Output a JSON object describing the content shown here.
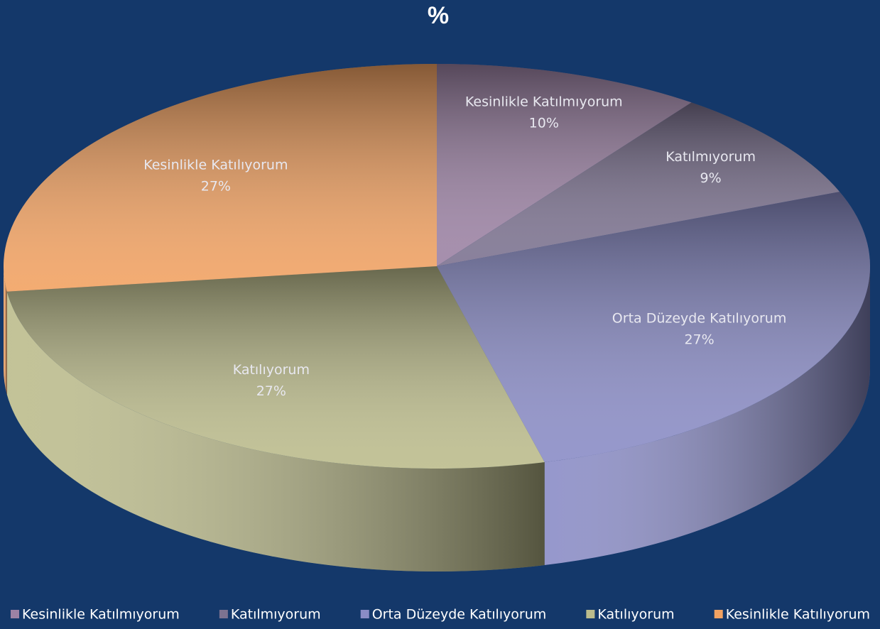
{
  "chart_data": {
    "type": "pie",
    "title": "%",
    "categories": [
      "Kesinlikle Katılmıyorum",
      "Katılmıyorum",
      "Orta Düzeyde Katılıyorum",
      "Katılıyorum",
      "Kesinlikle Katılıyorum"
    ],
    "values": [
      10,
      9,
      27,
      27,
      27
    ],
    "value_labels": [
      "10%",
      "9%",
      "27%",
      "27%",
      "27%"
    ],
    "colors": [
      "#9c82a4",
      "#7c7290",
      "#8a8cc6",
      "#bcbc8c",
      "#f2a262"
    ],
    "legend": "bottom"
  }
}
